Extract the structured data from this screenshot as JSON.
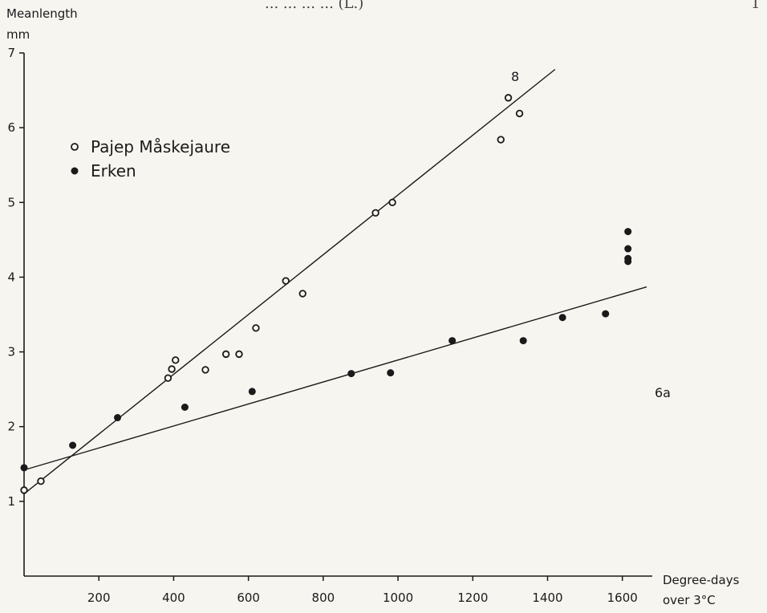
{
  "header": {
    "fragment": "... ... ... ... (L.)",
    "page_fragment": "1"
  },
  "chart_data": {
    "type": "scatter",
    "panel_label": "6a",
    "ylabel_line1": "Meanlength",
    "ylabel_line2": "mm",
    "xlabel_line1": "Degree-days",
    "xlabel_line2": "over 3°C",
    "xlim": [
      0,
      1680
    ],
    "ylim": [
      0,
      7
    ],
    "x_ticks": [
      200,
      400,
      600,
      800,
      1000,
      1200,
      1400,
      1600
    ],
    "y_ticks": [
      1,
      2,
      3,
      4,
      5,
      6,
      7
    ],
    "legend_position": "top-left",
    "series": [
      {
        "name": "Pajep Måskejaure",
        "marker": "open-circle",
        "points": [
          {
            "x": 0,
            "y": 1.15
          },
          {
            "x": 45,
            "y": 1.27
          },
          {
            "x": 385,
            "y": 2.65
          },
          {
            "x": 395,
            "y": 2.77
          },
          {
            "x": 405,
            "y": 2.89
          },
          {
            "x": 485,
            "y": 2.76
          },
          {
            "x": 540,
            "y": 2.97
          },
          {
            "x": 575,
            "y": 2.97
          },
          {
            "x": 620,
            "y": 3.32
          },
          {
            "x": 700,
            "y": 3.95
          },
          {
            "x": 745,
            "y": 3.78
          },
          {
            "x": 940,
            "y": 4.86
          },
          {
            "x": 985,
            "y": 5.0
          },
          {
            "x": 1275,
            "y": 5.84
          },
          {
            "x": 1295,
            "y": 6.4
          },
          {
            "x": 1325,
            "y": 6.19
          }
        ],
        "fit_line": {
          "x": [
            0,
            1420
          ],
          "y": [
            1.1,
            6.78
          ]
        },
        "line_label": "8"
      },
      {
        "name": "Erken",
        "marker": "filled-circle",
        "points": [
          {
            "x": 0,
            "y": 1.45
          },
          {
            "x": 130,
            "y": 1.75
          },
          {
            "x": 250,
            "y": 2.12
          },
          {
            "x": 430,
            "y": 2.26
          },
          {
            "x": 610,
            "y": 2.47
          },
          {
            "x": 875,
            "y": 2.71
          },
          {
            "x": 980,
            "y": 2.72
          },
          {
            "x": 1145,
            "y": 3.15
          },
          {
            "x": 1335,
            "y": 3.15
          },
          {
            "x": 1440,
            "y": 3.46
          },
          {
            "x": 1555,
            "y": 3.51
          },
          {
            "x": 1615,
            "y": 4.21
          },
          {
            "x": 1615,
            "y": 4.25
          },
          {
            "x": 1615,
            "y": 4.38
          },
          {
            "x": 1615,
            "y": 4.61
          }
        ],
        "fit_line": {
          "x": [
            0,
            1665
          ],
          "y": [
            1.42,
            3.87
          ]
        }
      }
    ]
  },
  "colors": {
    "ink": "#1a1a1a",
    "paper": "#f7f5f0"
  }
}
